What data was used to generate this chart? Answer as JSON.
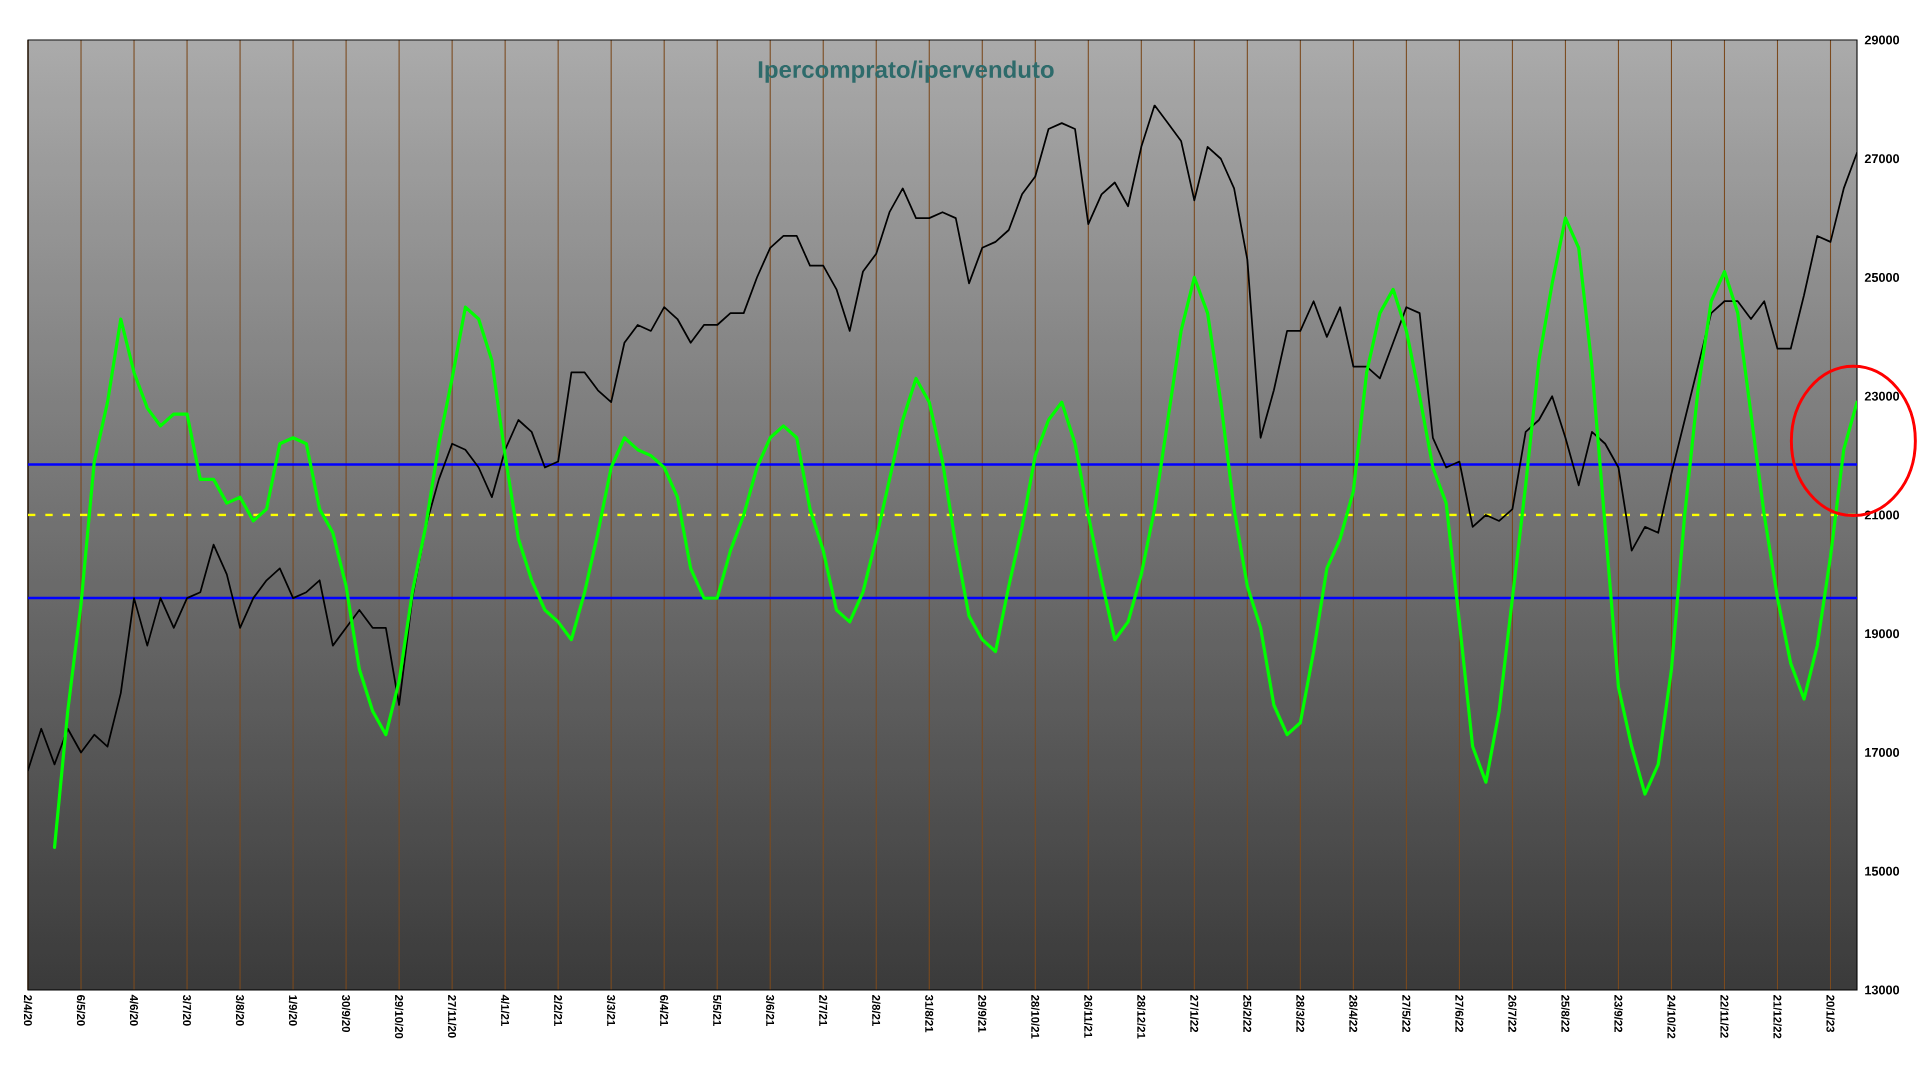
{
  "chart_data": {
    "type": "line",
    "title": "Ipercomprato/ipervenduto",
    "categories": [
      "2/4/20",
      null,
      null,
      null,
      "6/5/20",
      null,
      null,
      null,
      "4/6/20",
      null,
      null,
      null,
      "3/7/20",
      null,
      null,
      null,
      "3/8/20",
      null,
      null,
      null,
      "1/9/20",
      null,
      null,
      null,
      "30/9/20",
      null,
      null,
      null,
      "29/10/20",
      null,
      null,
      null,
      "27/11/20",
      null,
      null,
      null,
      "4/1/21",
      null,
      null,
      null,
      "2/2/21",
      null,
      null,
      null,
      "3/3/21",
      null,
      null,
      null,
      "6/4/21",
      null,
      null,
      null,
      "5/5/21",
      null,
      null,
      null,
      "3/6/21",
      null,
      null,
      null,
      "2/7/21",
      null,
      null,
      null,
      "2/8/21",
      null,
      null,
      null,
      "31/8/21",
      null,
      null,
      null,
      "29/9/21",
      null,
      null,
      null,
      "28/10/21",
      null,
      null,
      null,
      "26/11/21",
      null,
      null,
      null,
      "28/12/21",
      null,
      null,
      null,
      "27/1/22",
      null,
      null,
      null,
      "25/2/22",
      null,
      null,
      null,
      "28/3/22",
      null,
      null,
      null,
      "28/4/22",
      null,
      null,
      null,
      "27/5/22",
      null,
      null,
      null,
      "27/6/22",
      null,
      null,
      null,
      "26/7/22",
      null,
      null,
      null,
      "25/8/22",
      null,
      null,
      null,
      "23/9/22",
      null,
      null,
      null,
      "24/10/22",
      null,
      null,
      null,
      "22/11/22",
      null,
      null,
      null,
      "21/12/22",
      null,
      null,
      null,
      "20/1/23",
      null,
      null
    ],
    "series": [
      {
        "color": "#000000",
        "values": [
          16700,
          17400,
          16800,
          17400,
          17000,
          17300,
          17100,
          18000,
          19600,
          18800,
          19600,
          19100,
          19600,
          19700,
          20500,
          20000,
          19100,
          19600,
          19900,
          20100,
          19600,
          19700,
          19900,
          18800,
          19100,
          19400,
          19100,
          19100,
          17800,
          19600,
          20800,
          21600,
          22200,
          22100,
          21800,
          21300,
          22100,
          22600,
          22400,
          21800,
          21900,
          23400,
          23400,
          23100,
          22900,
          23900,
          24200,
          24100,
          24500,
          24300,
          23900,
          24200,
          24200,
          24400,
          24400,
          25000,
          25500,
          25700,
          25700,
          25200,
          25200,
          24800,
          24100,
          25100,
          25400,
          26100,
          26500,
          26000,
          26000,
          26100,
          26000,
          24900,
          25500,
          25600,
          25800,
          26400,
          26700,
          27500,
          27600,
          27500,
          25900,
          26400,
          26600,
          26200,
          27200,
          27900,
          27600,
          27300,
          26300,
          27200,
          27000,
          26500,
          25300,
          22300,
          23100,
          24100,
          24100,
          24600,
          24000,
          24500,
          23500,
          23500,
          23300,
          23900,
          24500,
          24400,
          22300,
          21800,
          21900,
          20800,
          21000,
          20900,
          21100,
          22400,
          22600,
          23000,
          22300,
          21500,
          22400,
          22200,
          21800,
          20400,
          20800,
          20700,
          21700,
          22600,
          23500,
          24400,
          24600,
          24600,
          24300,
          24600,
          23800,
          23800,
          24700,
          25700,
          25600,
          26500,
          27100
        ]
      },
      {
        "color": "#00ff00",
        "values": [
          null,
          null,
          15400,
          17700,
          19500,
          21900,
          22900,
          24300,
          23400,
          22800,
          22500,
          22700,
          22700,
          21600,
          21600,
          21200,
          21300,
          20900,
          21100,
          22200,
          22300,
          22200,
          21100,
          20700,
          19800,
          18400,
          17700,
          17300,
          18200,
          19700,
          20800,
          22200,
          23300,
          24500,
          24300,
          23600,
          22000,
          20600,
          19900,
          19400,
          19200,
          18900,
          19700,
          20700,
          21800,
          22300,
          22100,
          22000,
          21800,
          21300,
          20100,
          19600,
          19600,
          20400,
          21000,
          21800,
          22300,
          22500,
          22300,
          21100,
          20400,
          19400,
          19200,
          19700,
          20600,
          21600,
          22600,
          23300,
          22900,
          21900,
          20500,
          19300,
          18900,
          18700,
          19800,
          20800,
          22000,
          22600,
          22900,
          22200,
          21000,
          19900,
          18900,
          19200,
          20000,
          21100,
          22600,
          24100,
          25000,
          24400,
          22900,
          21100,
          19800,
          19100,
          17800,
          17300,
          17500,
          18700,
          20100,
          20600,
          21400,
          23400,
          24400,
          24800,
          24100,
          23000,
          21800,
          21200,
          19200,
          17100,
          16500,
          17700,
          19600,
          21500,
          23600,
          24900,
          26000,
          25500,
          23500,
          20800,
          18100,
          17100,
          16300,
          16800,
          18400,
          21000,
          23100,
          24600,
          25100,
          24400,
          22700,
          21000,
          19600,
          18500,
          17900,
          18800,
          20300,
          22100,
          22900
        ]
      }
    ],
    "ylim": [
      13000,
      29000
    ],
    "yticks": [
      13000,
      15000,
      17000,
      19000,
      21000,
      23000,
      25000,
      27000,
      29000
    ],
    "ref_lines": [
      {
        "axis": "y",
        "value": 21850,
        "color": "#0000ff"
      },
      {
        "axis": "y",
        "value": 21000,
        "color": "#ffff00",
        "line_style": "dashed"
      },
      {
        "axis": "y",
        "value": 19600,
        "color": "#0000ff"
      }
    ],
    "grid": "x"
  }
}
